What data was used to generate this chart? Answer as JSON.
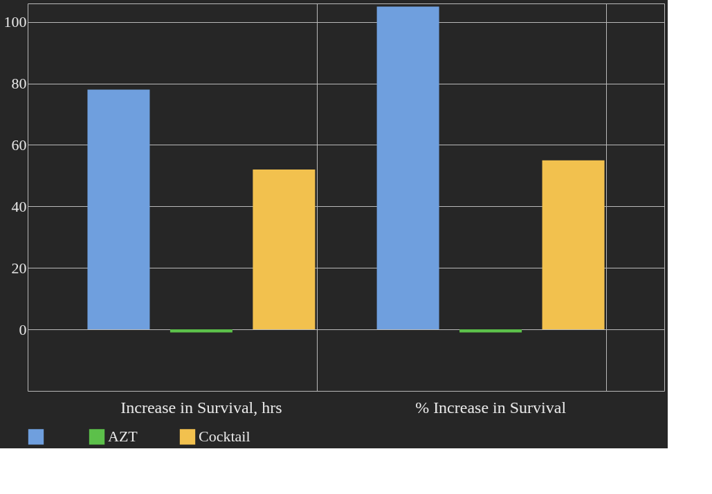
{
  "chart_data": {
    "type": "bar",
    "categories": [
      "Increase in Survival, hrs",
      "% Increase in Survival"
    ],
    "series": [
      {
        "color": "#6f9fde",
        "values": [
          78,
          105
        ]
      },
      {
        "name": "AZT",
        "color": "#5cc04a",
        "values": [
          -1,
          -1
        ]
      },
      {
        "name": "Cocktail",
        "color": "#f2c14e",
        "values": [
          52,
          55
        ]
      }
    ],
    "ylim": [
      -20,
      106
    ],
    "yticks": [
      0,
      20,
      40,
      60,
      80,
      100
    ],
    "grid": true,
    "legend": "bottom"
  }
}
